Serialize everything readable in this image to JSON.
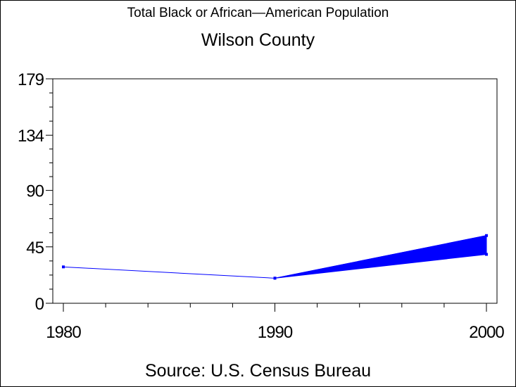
{
  "title": "Total Black or African—American Population",
  "subtitle": "Wilson County",
  "source": "Source: U.S. Census Bureau",
  "colors": {
    "series": "#0000ff",
    "axis": "#000000",
    "background": "#ffffff"
  },
  "chart_data": {
    "type": "line",
    "title": "Total Black or African—American Population",
    "subtitle": "Wilson County",
    "xlabel": "",
    "ylabel": "",
    "x": [
      1980,
      1990,
      2000
    ],
    "x_ticks": [
      "1980",
      "1990",
      "2000"
    ],
    "y_ticks": [
      "0",
      "45",
      "90",
      "134",
      "179"
    ],
    "y_tick_values": [
      0,
      45,
      90,
      134,
      179
    ],
    "xlim": [
      1980,
      2000
    ],
    "ylim": [
      0,
      179
    ],
    "grid": false,
    "legend": "none",
    "series": [
      {
        "values": [
          29,
          20,
          54
        ]
      }
    ],
    "band": {
      "x": [
        1990,
        2000
      ],
      "lower": [
        20,
        39
      ],
      "upper": [
        20,
        54
      ]
    },
    "source": "Source: U.S. Census Bureau"
  }
}
